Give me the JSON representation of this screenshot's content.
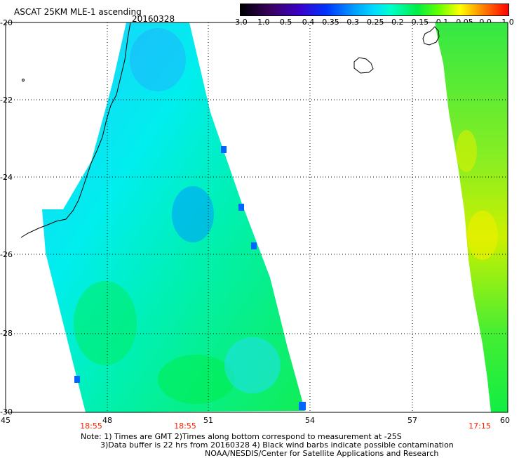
{
  "header": {
    "title": "ASCAT 25KM MLE-1 ascending",
    "date": "20160328"
  },
  "colorbar": {
    "tick_labels": [
      "-3.0",
      "-1.0",
      "-0.5",
      "-0.4",
      "-0.35",
      "-0.3",
      "-0.25",
      "-0.2",
      "-0.15",
      "-0.1",
      "-0.05",
      "0.0",
      "1.0"
    ]
  },
  "map": {
    "lat_labels": [
      "-20",
      "-22",
      "-24",
      "-26",
      "-28",
      "-30"
    ],
    "lon_labels": [
      "45",
      "48",
      "51",
      "54",
      "57",
      "60"
    ],
    "pass_times": [
      "18:55",
      "18:55",
      "17:15"
    ],
    "colors": {
      "low": "#00aaff",
      "mid": "#00f0ff",
      "high": "#00ee44",
      "peak": "#ccff00",
      "time_text": "#ff2200"
    }
  },
  "footer": {
    "note_line1": "Note: 1) Times are GMT 2)Times along bottom correspond to measurement at -25S",
    "note_line2": "3)Data buffer is 22 hrs from 20160328 4) Black wind barbs indicate possible contamination",
    "note_line3": "NOAA/NESDIS/Center for Satellite Applications and Research"
  }
}
